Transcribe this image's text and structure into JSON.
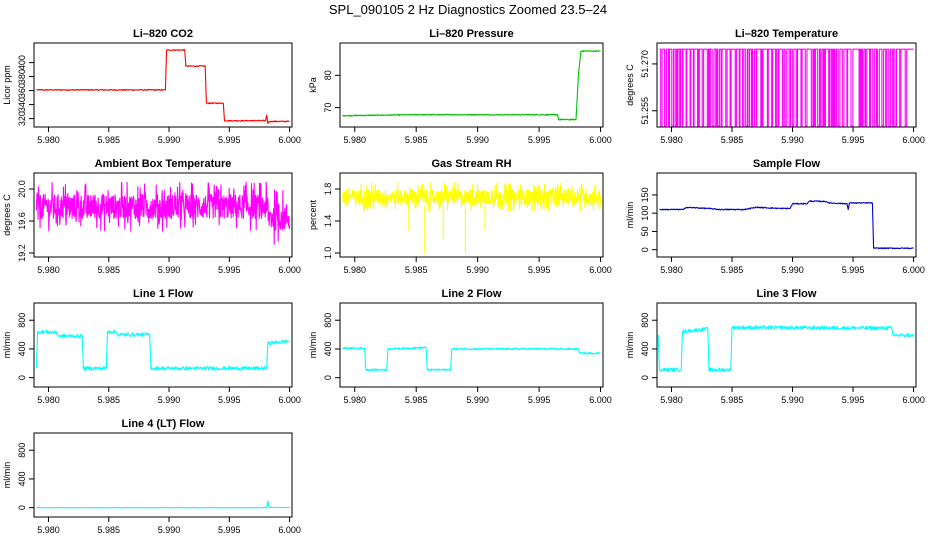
{
  "title": "SPL_090105  2 Hz Diagnostics Zoomed 23.5–24",
  "colors": {
    "red": "#ff0000",
    "green": "#00c000",
    "magenta": "#ff00ff",
    "yellow": "#ffff00",
    "blue": "#0000cd",
    "cyan": "#00ffff"
  },
  "chart_data": [
    {
      "type": "line",
      "title": "Li–820 CO2",
      "ylabel": "Licor ppm",
      "xlabel": "",
      "xlim": [
        5.9788,
        6.0002
      ],
      "ylim": [
        308,
        428
      ],
      "xticks": [
        "5.980",
        "5.985",
        "5.990",
        "5.995",
        "6.000"
      ],
      "yticks": [
        "320",
        "340",
        "360",
        "380",
        "400"
      ],
      "color": "red",
      "points": [
        [
          5.979,
          361
        ],
        [
          5.9897,
          361
        ],
        [
          5.9898,
          418
        ],
        [
          5.9913,
          418
        ],
        [
          5.9914,
          395
        ],
        [
          5.993,
          395
        ],
        [
          5.9931,
          342
        ],
        [
          5.9945,
          342
        ],
        [
          5.9946,
          317
        ],
        [
          5.998,
          317
        ],
        [
          5.9981,
          325
        ],
        [
          5.9982,
          313
        ],
        [
          5.9983,
          316
        ],
        [
          6.0,
          316
        ]
      ]
    },
    {
      "type": "line",
      "title": "Li–820 Pressure",
      "ylabel": "kPa",
      "xlabel": "",
      "xlim": [
        5.9788,
        6.0002
      ],
      "ylim": [
        64,
        90
      ],
      "xticks": [
        "5.980",
        "5.985",
        "5.990",
        "5.995",
        "6.000"
      ],
      "yticks": [
        "70",
        "80"
      ],
      "color": "green",
      "points": [
        [
          5.979,
          67.5
        ],
        [
          5.985,
          67.8
        ],
        [
          5.99,
          67.8
        ],
        [
          5.9965,
          67.8
        ],
        [
          5.9966,
          66.3
        ],
        [
          5.998,
          66.3
        ],
        [
          5.9981,
          73
        ],
        [
          5.9982,
          80
        ],
        [
          5.9984,
          87.5
        ],
        [
          6.0,
          87.5
        ]
      ]
    },
    {
      "type": "line",
      "title": "Li–820 Temperature",
      "ylabel": "degrees C",
      "xlabel": "",
      "xlim": [
        5.9788,
        6.0002
      ],
      "ylim": [
        51.2498,
        51.2767
      ],
      "xticks": [
        "5.980",
        "5.985",
        "5.990",
        "5.995",
        "6.000"
      ],
      "yticks": [
        "51.255",
        "51.270"
      ],
      "color": "magenta",
      "levels": [
        51.2501,
        51.2747
      ],
      "range": [
        5.979,
        6.0
      ],
      "quiet_after": 5.9997
    },
    {
      "type": "line",
      "title": "Ambient Box Temperature",
      "ylabel": "degrees C",
      "xlabel": "",
      "xlim": [
        5.9788,
        6.0002
      ],
      "ylim": [
        19.15,
        20.2
      ],
      "xticks": [
        "5.980",
        "5.985",
        "5.990",
        "5.995",
        "6.000"
      ],
      "yticks": [
        "19.2",
        "19.6",
        "20.0"
      ],
      "color": "magenta",
      "segments": [
        [
          5.979,
          5.9982,
          19.78,
          0.22
        ],
        [
          5.9982,
          6.0,
          19.65,
          0.25
        ]
      ]
    },
    {
      "type": "line",
      "title": "Gas Stream RH",
      "ylabel": "percent",
      "xlabel": "",
      "xlim": [
        5.9788,
        6.0002
      ],
      "ylim": [
        0.95,
        2.0
      ],
      "xticks": [
        "5.980",
        "5.985",
        "5.990",
        "5.995",
        "6.000"
      ],
      "yticks": [
        "1.0",
        "1.4",
        "1.8"
      ],
      "color": "yellow",
      "segments": [
        [
          5.979,
          6.0,
          1.7,
          0.13
        ]
      ],
      "dips": [
        [
          5.9844,
          1.28
        ],
        [
          5.9857,
          1.0
        ],
        [
          5.9872,
          1.18
        ],
        [
          5.989,
          1.0
        ],
        [
          5.9906,
          1.3
        ]
      ]
    },
    {
      "type": "line",
      "title": "Sample Flow",
      "ylabel": "ml/min",
      "xlabel": "",
      "xlim": [
        5.9788,
        6.0002
      ],
      "ylim": [
        -20,
        210
      ],
      "xticks": [
        "5.980",
        "5.985",
        "5.990",
        "5.995",
        "6.000"
      ],
      "yticks": [
        "0",
        "50",
        "100",
        "150"
      ],
      "color": "blue",
      "points": [
        [
          5.979,
          110
        ],
        [
          5.981,
          110
        ],
        [
          5.9812,
          116
        ],
        [
          5.983,
          113
        ],
        [
          5.984,
          110
        ],
        [
          5.986,
          110
        ],
        [
          5.987,
          116
        ],
        [
          5.989,
          113
        ],
        [
          5.9898,
          113
        ],
        [
          5.99,
          126
        ],
        [
          5.9912,
          126
        ],
        [
          5.9914,
          133
        ],
        [
          5.9928,
          132
        ],
        [
          5.993,
          128
        ],
        [
          5.9945,
          126
        ],
        [
          5.9946,
          110
        ],
        [
          5.9947,
          128
        ],
        [
          5.9966,
          128
        ],
        [
          5.9967,
          4
        ],
        [
          6.0,
          4
        ]
      ]
    },
    {
      "type": "line",
      "title": "Line 1 Flow",
      "ylabel": "ml/min",
      "xlabel": "",
      "xlim": [
        5.9788,
        6.0002
      ],
      "ylim": [
        -130,
        1040
      ],
      "xticks": [
        "5.980",
        "5.985",
        "5.990",
        "5.995",
        "6.000"
      ],
      "yticks": [
        "0",
        "400",
        "800"
      ],
      "color": "cyan",
      "points": [
        [
          5.979,
          130
        ],
        [
          5.9791,
          640
        ],
        [
          5.9807,
          630
        ],
        [
          5.9808,
          580
        ],
        [
          5.9828,
          580
        ],
        [
          5.9829,
          130
        ],
        [
          5.9848,
          130
        ],
        [
          5.9849,
          640
        ],
        [
          5.9856,
          640
        ],
        [
          5.9857,
          600
        ],
        [
          5.9884,
          600
        ],
        [
          5.9885,
          130
        ],
        [
          5.9981,
          130
        ],
        [
          5.9982,
          480
        ],
        [
          6.0,
          510
        ]
      ],
      "noise": 25
    },
    {
      "type": "line",
      "title": "Line 2 Flow",
      "ylabel": "ml/min",
      "xlabel": "",
      "xlim": [
        5.9788,
        6.0002
      ],
      "ylim": [
        -130,
        1040
      ],
      "xticks": [
        "5.980",
        "5.985",
        "5.990",
        "5.995",
        "6.000"
      ],
      "yticks": [
        "0",
        "400",
        "800"
      ],
      "color": "cyan",
      "points": [
        [
          5.979,
          410
        ],
        [
          5.9808,
          410
        ],
        [
          5.9809,
          110
        ],
        [
          5.9826,
          110
        ],
        [
          5.9827,
          400
        ],
        [
          5.9858,
          420
        ],
        [
          5.9859,
          110
        ],
        [
          5.9878,
          110
        ],
        [
          5.9879,
          400
        ],
        [
          5.9982,
          400
        ],
        [
          5.9983,
          340
        ],
        [
          6.0,
          340
        ]
      ],
      "noise": 12
    },
    {
      "type": "line",
      "title": "Line 3 Flow",
      "ylabel": "ml/min",
      "xlabel": "",
      "xlim": [
        5.9788,
        6.0002
      ],
      "ylim": [
        -130,
        1040
      ],
      "xticks": [
        "5.980",
        "5.985",
        "5.990",
        "5.995",
        "6.000"
      ],
      "yticks": [
        "0",
        "400",
        "800"
      ],
      "color": "cyan",
      "points": [
        [
          5.9789,
          600
        ],
        [
          5.979,
          110
        ],
        [
          5.9808,
          110
        ],
        [
          5.9809,
          640
        ],
        [
          5.983,
          680
        ],
        [
          5.9831,
          110
        ],
        [
          5.9849,
          110
        ],
        [
          5.985,
          700
        ],
        [
          5.9982,
          690
        ],
        [
          5.9983,
          590
        ],
        [
          6.0,
          590
        ]
      ],
      "noise": 25
    },
    {
      "type": "line",
      "title": "Line 4 (LT) Flow",
      "ylabel": "ml/min",
      "xlabel": "",
      "xlim": [
        5.9788,
        6.0002
      ],
      "ylim": [
        -130,
        1040
      ],
      "xticks": [
        "5.980",
        "5.985",
        "5.990",
        "5.995",
        "6.000"
      ],
      "yticks": [
        "0",
        "400",
        "800"
      ],
      "color": "cyan",
      "points": [
        [
          5.979,
          0
        ],
        [
          5.9981,
          0
        ],
        [
          5.9982,
          90
        ],
        [
          5.9983,
          5
        ],
        [
          6.0,
          0
        ]
      ],
      "noise": 2
    }
  ]
}
